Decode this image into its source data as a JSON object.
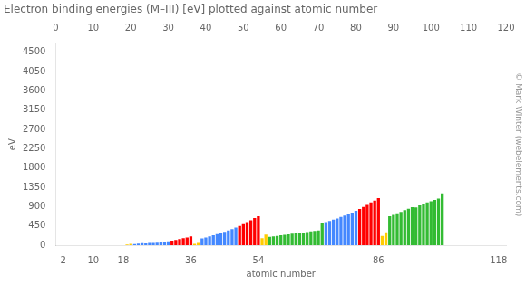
{
  "chart_data": {
    "type": "bar",
    "title": "Electron binding energies (M–III) [eV] plotted against atomic number",
    "xlabel": "atomic number",
    "ylabel": "eV",
    "annotations": [
      "© Mark Winter (webelements.com)"
    ],
    "x": [
      19,
      20,
      21,
      22,
      23,
      24,
      25,
      26,
      27,
      28,
      29,
      30,
      31,
      32,
      33,
      34,
      35,
      36,
      37,
      38,
      39,
      40,
      41,
      42,
      43,
      44,
      45,
      46,
      47,
      48,
      49,
      50,
      51,
      52,
      53,
      54,
      55,
      56,
      57,
      58,
      59,
      60,
      61,
      62,
      63,
      64,
      65,
      66,
      67,
      68,
      69,
      70,
      71,
      72,
      73,
      74,
      75,
      76,
      77,
      78,
      79,
      80,
      81,
      82,
      83,
      84,
      85,
      86,
      87,
      88,
      89,
      90,
      91,
      92,
      93,
      94,
      95,
      96,
      97,
      98,
      99,
      100,
      101,
      102,
      103
    ],
    "values": [
      18.3,
      32.3,
      28.3,
      37.2,
      46.7,
      42.2,
      51.2,
      54.0,
      60.0,
      68.0,
      77.3,
      91.4,
      107.2,
      120.4,
      140.5,
      161.9,
      181.5,
      205.0,
      30.5,
      54.5,
      155.8,
      180.1,
      207.4,
      231.1,
      257.6,
      284.2,
      311.9,
      340.5,
      374.0,
      411.9,
      450.8,
      493.2,
      537.5,
      582.5,
      631.3,
      676.4,
      161.3,
      247.4,
      196.0,
      207.4,
      218.5,
      232.1,
      242.0,
      254.0,
      266.6,
      289.0,
      284.0,
      293.2,
      308.2,
      320.2,
      331.6,
      343.5,
      506.8,
      538.1,
      565.5,
      594.1,
      625.4,
      658.2,
      691.1,
      725.4,
      762.1,
      800.3,
      845.5,
      893.6,
      938.2,
      995.3,
      1042.0,
      1097.0,
      214.4,
      299.0,
      675.2,
      708.7,
      743.4,
      778.3,
      815.9,
      848.0,
      887.0,
      879.0,
      930.0,
      961.0,
      997.0,
      1026.0,
      1057.0,
      1085.0,
      1208.0
    ],
    "colors": [
      "#ffcc00",
      "#ffcc00",
      "#4488ff",
      "#4488ff",
      "#4488ff",
      "#4488ff",
      "#4488ff",
      "#4488ff",
      "#4488ff",
      "#4488ff",
      "#4488ff",
      "#4488ff",
      "#ff0000",
      "#ff0000",
      "#ff0000",
      "#ff0000",
      "#ff0000",
      "#ff0000",
      "#ffcc00",
      "#ffcc00",
      "#4488ff",
      "#4488ff",
      "#4488ff",
      "#4488ff",
      "#4488ff",
      "#4488ff",
      "#4488ff",
      "#4488ff",
      "#4488ff",
      "#4488ff",
      "#ff0000",
      "#ff0000",
      "#ff0000",
      "#ff0000",
      "#ff0000",
      "#ff0000",
      "#ffcc00",
      "#ffcc00",
      "#33bb33",
      "#33bb33",
      "#33bb33",
      "#33bb33",
      "#33bb33",
      "#33bb33",
      "#33bb33",
      "#33bb33",
      "#33bb33",
      "#33bb33",
      "#33bb33",
      "#33bb33",
      "#33bb33",
      "#33bb33",
      "#33bb33",
      "#4488ff",
      "#4488ff",
      "#4488ff",
      "#4488ff",
      "#4488ff",
      "#4488ff",
      "#4488ff",
      "#4488ff",
      "#4488ff",
      "#ff0000",
      "#ff0000",
      "#ff0000",
      "#ff0000",
      "#ff0000",
      "#ff0000",
      "#ffcc00",
      "#ffcc00",
      "#33bb33",
      "#33bb33",
      "#33bb33",
      "#33bb33",
      "#33bb33",
      "#33bb33",
      "#33bb33",
      "#33bb33",
      "#33bb33",
      "#33bb33",
      "#33bb33",
      "#33bb33",
      "#33bb33",
      "#33bb33",
      "#33bb33"
    ],
    "xlim": [
      0,
      120
    ],
    "xticks": [
      2,
      10,
      18,
      36,
      54,
      86,
      118
    ],
    "x2lim": [
      0,
      120
    ],
    "x2ticks": [
      0,
      10,
      20,
      30,
      40,
      50,
      60,
      70,
      80,
      90,
      100,
      110,
      120
    ],
    "ylim": [
      0,
      4700
    ],
    "yticks": [
      0,
      450,
      900,
      1350,
      1800,
      2250,
      2700,
      3150,
      3600,
      4050,
      4500
    ],
    "grid": false
  }
}
